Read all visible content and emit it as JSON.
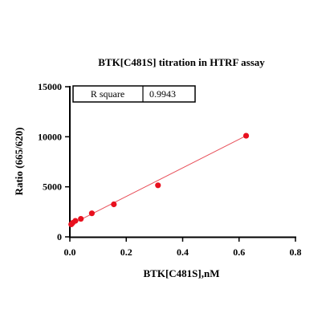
{
  "chart_data": {
    "type": "scatter",
    "title": "BTK[C481S]  titration in  HTRF assay",
    "xlabel": "BTK[C481S],nM",
    "ylabel": "Ratio (665/620)",
    "xlim": [
      0,
      0.8
    ],
    "ylim": [
      0,
      15000
    ],
    "x_ticks": [
      "0.0",
      "0.2",
      "0.4",
      "0.6",
      "0.8"
    ],
    "y_ticks": [
      "0",
      "5000",
      "10000",
      "15000"
    ],
    "grid": false,
    "point_color": "#e8101e",
    "fit_line_color": "#e8505a",
    "series": [
      {
        "x": [
          0.0049,
          0.0098,
          0.0195,
          0.039,
          0.078,
          0.156,
          0.3125,
          0.625
        ],
        "y": [
          1250,
          1400,
          1600,
          1800,
          2350,
          3250,
          5150,
          10100
        ]
      }
    ],
    "fit_line": {
      "x": [
        0,
        0.625
      ],
      "y": [
        1180,
        10100
      ]
    },
    "stats_box": {
      "label": "R square",
      "value": "0.9943"
    }
  }
}
